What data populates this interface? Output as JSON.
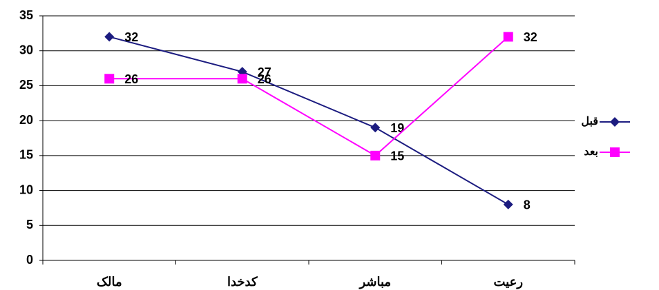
{
  "chart_data": {
    "type": "line",
    "categories": [
      "مالک",
      "کدخدا",
      "مباشر",
      "رعیت"
    ],
    "series": [
      {
        "name": "قبل",
        "color": "#1c1c80",
        "marker": "diamond",
        "values": [
          32,
          27,
          19,
          8
        ]
      },
      {
        "name": "بعد",
        "color": "#ff00ff",
        "marker": "square",
        "values": [
          26,
          26,
          15,
          32
        ]
      }
    ],
    "ylim": [
      0,
      35
    ],
    "yticks": [
      0,
      5,
      10,
      15,
      20,
      25,
      30,
      35
    ],
    "grid": true,
    "legend": "right"
  }
}
